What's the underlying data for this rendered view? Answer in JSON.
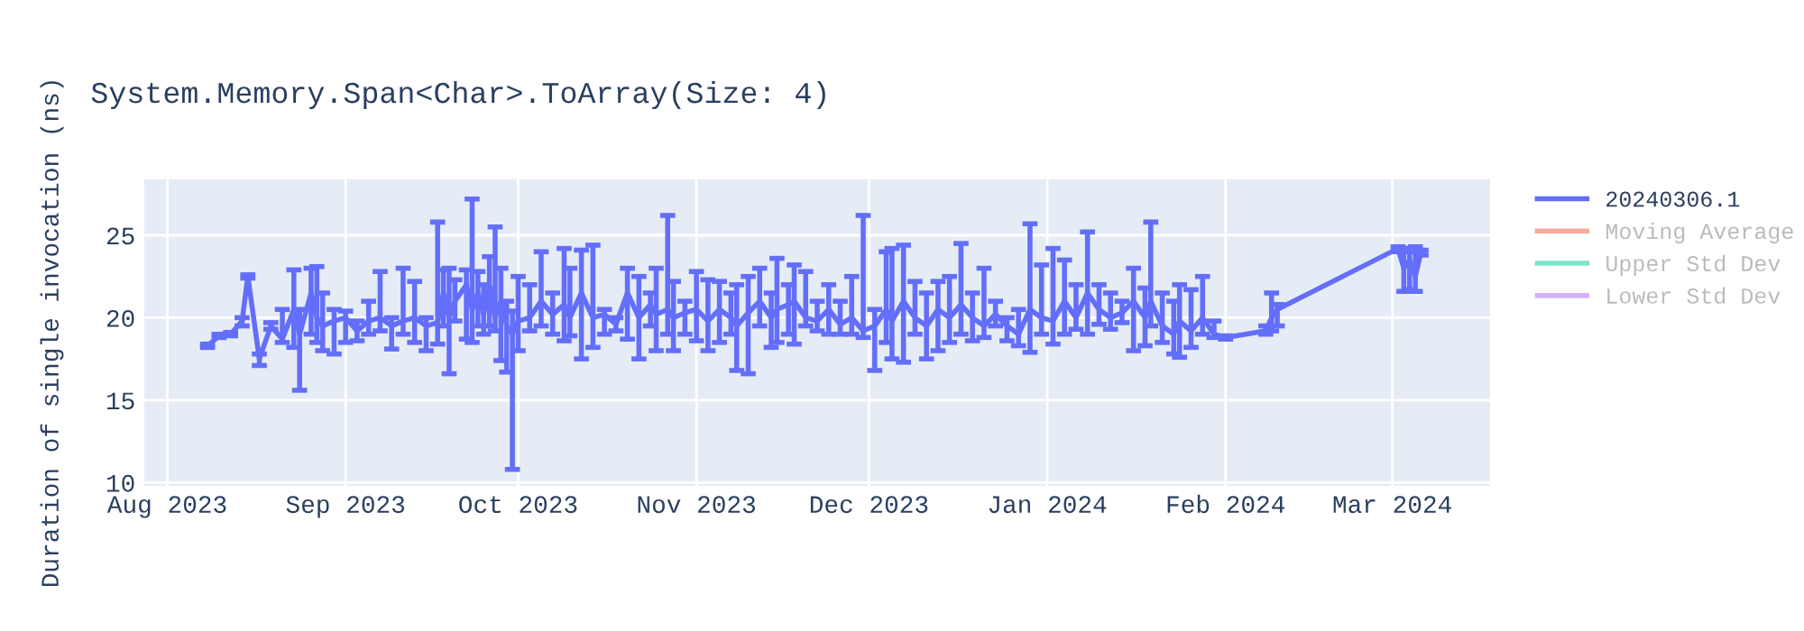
{
  "chart_data": {
    "type": "line",
    "title": "System.Memory.Span<Char>.ToArray(Size: 4)",
    "ylabel": "Duration of single invocation (ns)",
    "x": [
      "2023-08-08",
      "2023-08-10",
      "2023-08-12",
      "2023-08-14",
      "2023-08-15",
      "2023-08-17",
      "2023-08-19",
      "2023-08-21",
      "2023-08-23",
      "2023-08-24",
      "2023-08-26",
      "2023-08-27",
      "2023-08-28",
      "2023-08-30",
      "2023-09-01",
      "2023-09-03",
      "2023-09-05",
      "2023-09-07",
      "2023-09-09",
      "2023-09-11",
      "2023-09-13",
      "2023-09-15",
      "2023-09-17",
      "2023-09-18",
      "2023-09-19",
      "2023-09-20",
      "2023-09-22",
      "2023-09-23",
      "2023-09-24",
      "2023-09-25",
      "2023-09-26",
      "2023-09-27",
      "2023-09-28",
      "2023-09-29",
      "2023-09-30",
      "2023-10-01",
      "2023-10-03",
      "2023-10-05",
      "2023-10-07",
      "2023-10-09",
      "2023-10-10",
      "2023-10-12",
      "2023-10-14",
      "2023-10-16",
      "2023-10-18",
      "2023-10-20",
      "2023-10-22",
      "2023-10-24",
      "2023-10-25",
      "2023-10-27",
      "2023-10-28",
      "2023-10-30",
      "2023-11-01",
      "2023-11-03",
      "2023-11-05",
      "2023-11-07",
      "2023-11-08",
      "2023-11-10",
      "2023-11-12",
      "2023-11-14",
      "2023-11-15",
      "2023-11-17",
      "2023-11-18",
      "2023-11-20",
      "2023-11-22",
      "2023-11-24",
      "2023-11-26",
      "2023-11-28",
      "2023-11-30",
      "2023-12-02",
      "2023-12-04",
      "2023-12-05",
      "2023-12-07",
      "2023-12-09",
      "2023-12-11",
      "2023-12-13",
      "2023-12-15",
      "2023-12-17",
      "2023-12-19",
      "2023-12-21",
      "2023-12-23",
      "2023-12-25",
      "2023-12-27",
      "2023-12-29",
      "2023-12-31",
      "2024-01-02",
      "2024-01-04",
      "2024-01-06",
      "2024-01-08",
      "2024-01-10",
      "2024-01-12",
      "2024-01-14",
      "2024-01-16",
      "2024-01-18",
      "2024-01-19",
      "2024-01-21",
      "2024-01-23",
      "2024-01-24",
      "2024-01-26",
      "2024-01-28",
      "2024-01-30",
      "2024-02-01",
      "2024-02-08",
      "2024-02-09",
      "2024-02-10",
      "2024-03-02",
      "2024-03-03",
      "2024-03-04",
      "2024-03-05",
      "2024-03-06"
    ],
    "series": [
      {
        "name": "20240306.1",
        "color": "#636efa",
        "values": [
          18.3,
          18.9,
          19.0,
          19.8,
          22.5,
          17.5,
          19.5,
          18.7,
          20.5,
          19.0,
          21.5,
          20.0,
          19.5,
          19.8,
          20.0,
          19.2,
          19.8,
          20.0,
          19.5,
          19.8,
          20.0,
          19.5,
          19.7,
          21.5,
          20.0,
          21.0,
          22.0,
          20.5,
          21.5,
          20.2,
          22.0,
          20.0,
          21.0,
          19.5,
          19.0,
          19.8,
          20.0,
          21.0,
          20.2,
          20.8,
          20.0,
          21.5,
          20.0,
          20.2,
          19.6,
          21.5,
          20.0,
          20.8,
          20.2,
          20.5,
          20.0,
          20.3,
          20.5,
          19.8,
          20.5,
          20.0,
          19.5,
          20.3,
          21.0,
          20.0,
          20.5,
          20.8,
          21.0,
          20.0,
          19.8,
          20.5,
          19.6,
          20.0,
          19.2,
          19.5,
          20.5,
          19.8,
          21.0,
          20.0,
          19.5,
          20.5,
          20.0,
          20.8,
          20.0,
          19.5,
          20.2,
          19.5,
          19.0,
          20.5,
          20.0,
          19.8,
          21.0,
          20.0,
          21.5,
          20.5,
          20.0,
          20.3,
          21.0,
          20.0,
          21.0,
          19.5,
          19.0,
          19.8,
          19.2,
          20.0,
          19.0,
          18.8,
          19.2,
          20.0,
          20.5,
          24.2,
          23.0,
          23.5,
          22.5,
          24.0
        ],
        "errors": [
          [
            18.2,
            18.4
          ],
          [
            18.8,
            19.0
          ],
          [
            18.9,
            19.1
          ],
          [
            19.5,
            20.0
          ],
          [
            22.4,
            22.6
          ],
          [
            17.1,
            17.8
          ],
          [
            19.3,
            19.7
          ],
          [
            18.5,
            20.5
          ],
          [
            18.2,
            22.9
          ],
          [
            15.6,
            20.5
          ],
          [
            19.0,
            23.0
          ],
          [
            18.5,
            23.1
          ],
          [
            18.0,
            21.5
          ],
          [
            17.8,
            20.5
          ],
          [
            18.5,
            20.4
          ],
          [
            18.6,
            19.8
          ],
          [
            19.0,
            21.0
          ],
          [
            19.2,
            22.8
          ],
          [
            18.1,
            20.0
          ],
          [
            19.0,
            23.0
          ],
          [
            18.5,
            22.2
          ],
          [
            18.0,
            20.0
          ],
          [
            18.4,
            25.8
          ],
          [
            19.5,
            22.9
          ],
          [
            16.6,
            23.0
          ],
          [
            19.8,
            22.3
          ],
          [
            18.7,
            22.9
          ],
          [
            18.5,
            27.2
          ],
          [
            19.5,
            22.8
          ],
          [
            19.0,
            22.0
          ],
          [
            19.5,
            23.7
          ],
          [
            19.2,
            25.5
          ],
          [
            17.4,
            23.0
          ],
          [
            16.7,
            21.0
          ],
          [
            10.8,
            20.4
          ],
          [
            18.0,
            22.5
          ],
          [
            19.2,
            22.0
          ],
          [
            19.5,
            24.0
          ],
          [
            19.0,
            21.5
          ],
          [
            18.6,
            24.2
          ],
          [
            18.9,
            23.0
          ],
          [
            17.5,
            24.1
          ],
          [
            18.2,
            24.4
          ],
          [
            19.0,
            20.5
          ],
          [
            19.2,
            20.0
          ],
          [
            18.7,
            23.0
          ],
          [
            17.5,
            22.5
          ],
          [
            19.5,
            21.5
          ],
          [
            18.0,
            23.0
          ],
          [
            19.0,
            26.2
          ],
          [
            18.0,
            22.2
          ],
          [
            19.0,
            21.0
          ],
          [
            18.6,
            22.8
          ],
          [
            18.0,
            22.3
          ],
          [
            18.5,
            22.2
          ],
          [
            19.0,
            21.5
          ],
          [
            16.8,
            22.0
          ],
          [
            16.6,
            22.5
          ],
          [
            19.5,
            23.0
          ],
          [
            18.2,
            21.5
          ],
          [
            18.5,
            23.6
          ],
          [
            19.0,
            22.0
          ],
          [
            18.4,
            23.2
          ],
          [
            19.5,
            22.8
          ],
          [
            19.2,
            21.0
          ],
          [
            19.0,
            22.0
          ],
          [
            19.0,
            21.0
          ],
          [
            19.0,
            22.5
          ],
          [
            18.8,
            26.2
          ],
          [
            16.8,
            20.5
          ],
          [
            18.5,
            24.0
          ],
          [
            17.5,
            24.2
          ],
          [
            17.3,
            24.4
          ],
          [
            19.0,
            22.2
          ],
          [
            17.5,
            21.5
          ],
          [
            18.0,
            22.2
          ],
          [
            18.5,
            22.5
          ],
          [
            19.0,
            24.5
          ],
          [
            18.6,
            21.5
          ],
          [
            18.8,
            23.0
          ],
          [
            19.5,
            21.0
          ],
          [
            18.6,
            20.0
          ],
          [
            18.3,
            20.5
          ],
          [
            17.9,
            25.7
          ],
          [
            19.0,
            23.2
          ],
          [
            18.4,
            24.2
          ],
          [
            19.0,
            23.5
          ],
          [
            19.3,
            22.0
          ],
          [
            19.0,
            25.2
          ],
          [
            19.6,
            22.0
          ],
          [
            19.3,
            21.5
          ],
          [
            19.7,
            21.0
          ],
          [
            18.0,
            23.0
          ],
          [
            18.3,
            21.8
          ],
          [
            19.5,
            25.8
          ],
          [
            18.5,
            21.5
          ],
          [
            17.8,
            21.0
          ],
          [
            17.6,
            22.0
          ],
          [
            18.2,
            21.7
          ],
          [
            19.0,
            22.5
          ],
          [
            18.8,
            19.8
          ],
          [
            18.7,
            18.9
          ],
          [
            19.0,
            19.5
          ],
          [
            19.2,
            21.5
          ],
          [
            19.5,
            20.8
          ],
          [
            24.0,
            24.3
          ],
          [
            21.6,
            24.2
          ],
          [
            21.7,
            24.0
          ],
          [
            21.6,
            24.3
          ],
          [
            23.8,
            24.1
          ]
        ]
      },
      {
        "name": "Moving Average",
        "color": "#f7ab9c",
        "values": [
          null,
          null,
          null,
          null,
          null,
          null,
          null,
          null,
          null,
          null,
          null,
          null,
          null,
          null,
          null,
          null,
          null,
          null,
          null,
          null,
          null,
          null,
          null,
          null,
          null,
          null,
          null,
          null,
          null,
          null,
          null,
          null,
          null,
          null,
          null,
          null,
          null,
          null,
          null,
          null,
          null,
          null,
          null,
          null,
          null,
          null,
          null,
          null,
          null,
          null,
          null,
          null,
          null,
          null,
          null,
          null,
          null,
          null,
          null,
          null,
          null,
          null,
          null,
          null,
          null,
          null,
          null,
          null,
          null,
          null,
          null,
          null,
          null,
          null,
          null,
          null,
          null,
          null,
          null,
          null,
          null,
          null,
          null,
          null,
          null,
          null,
          null,
          null,
          null,
          null,
          null,
          null,
          null,
          null,
          null,
          null,
          null,
          null,
          null,
          null,
          null,
          null,
          null,
          null,
          null,
          null,
          null,
          null,
          null,
          null
        ]
      },
      {
        "name": "Upper Std Dev",
        "color": "#7fe5c9",
        "values": [
          null,
          null,
          null,
          null,
          null,
          null,
          null,
          null,
          null,
          null,
          null,
          null,
          null,
          null,
          null,
          null,
          null,
          null,
          null,
          null,
          null,
          null,
          null,
          null,
          null,
          null,
          null,
          null,
          null,
          null,
          null,
          null,
          null,
          null,
          null,
          null,
          null,
          null,
          null,
          null,
          null,
          null,
          null,
          null,
          null,
          null,
          null,
          null,
          null,
          null,
          null,
          null,
          null,
          null,
          null,
          null,
          null,
          null,
          null,
          null,
          null,
          null,
          null,
          null,
          null,
          null,
          null,
          null,
          null,
          null,
          null,
          null,
          null,
          null,
          null,
          null,
          null,
          null,
          null,
          null,
          null,
          null,
          null,
          null,
          null,
          null,
          null,
          null,
          null,
          null,
          null,
          null,
          null,
          null,
          null,
          null,
          null,
          null,
          null,
          null,
          null,
          null,
          null,
          null,
          null,
          null,
          null,
          null,
          null,
          null
        ]
      },
      {
        "name": "Lower Std Dev",
        "color": "#d4b1fc",
        "values": [
          null,
          null,
          null,
          null,
          null,
          null,
          null,
          null,
          null,
          null,
          null,
          null,
          null,
          null,
          null,
          null,
          null,
          null,
          null,
          null,
          null,
          null,
          null,
          null,
          null,
          null,
          null,
          null,
          null,
          null,
          null,
          null,
          null,
          null,
          null,
          null,
          null,
          null,
          null,
          null,
          null,
          null,
          null,
          null,
          null,
          null,
          null,
          null,
          null,
          null,
          null,
          null,
          null,
          null,
          null,
          null,
          null,
          null,
          null,
          null,
          null,
          null,
          null,
          null,
          null,
          null,
          null,
          null,
          null,
          null,
          null,
          null,
          null,
          null,
          null,
          null,
          null,
          null,
          null,
          null,
          null,
          null,
          null,
          null,
          null,
          null,
          null,
          null,
          null,
          null,
          null,
          null,
          null,
          null,
          null,
          null,
          null,
          null,
          null,
          null,
          null,
          null,
          null,
          null,
          null,
          null,
          null,
          null,
          null,
          null
        ]
      }
    ],
    "xlim": [
      "2023-07-28",
      "2024-03-18"
    ],
    "xticks": [
      {
        "value": "2023-08-01",
        "label": "Aug 2023"
      },
      {
        "value": "2023-09-01",
        "label": "Sep 2023"
      },
      {
        "value": "2023-10-01",
        "label": "Oct 2023"
      },
      {
        "value": "2023-11-01",
        "label": "Nov 2023"
      },
      {
        "value": "2023-12-01",
        "label": "Dec 2023"
      },
      {
        "value": "2024-01-01",
        "label": "Jan 2024"
      },
      {
        "value": "2024-02-01",
        "label": "Feb 2024"
      },
      {
        "value": "2024-03-01",
        "label": "Mar 2024"
      }
    ],
    "ylim": [
      9.8,
      28.4
    ],
    "yticks": [
      10,
      15,
      20,
      25
    ],
    "grid": true,
    "legend": "right",
    "marker": "none",
    "line_style": "solid"
  }
}
